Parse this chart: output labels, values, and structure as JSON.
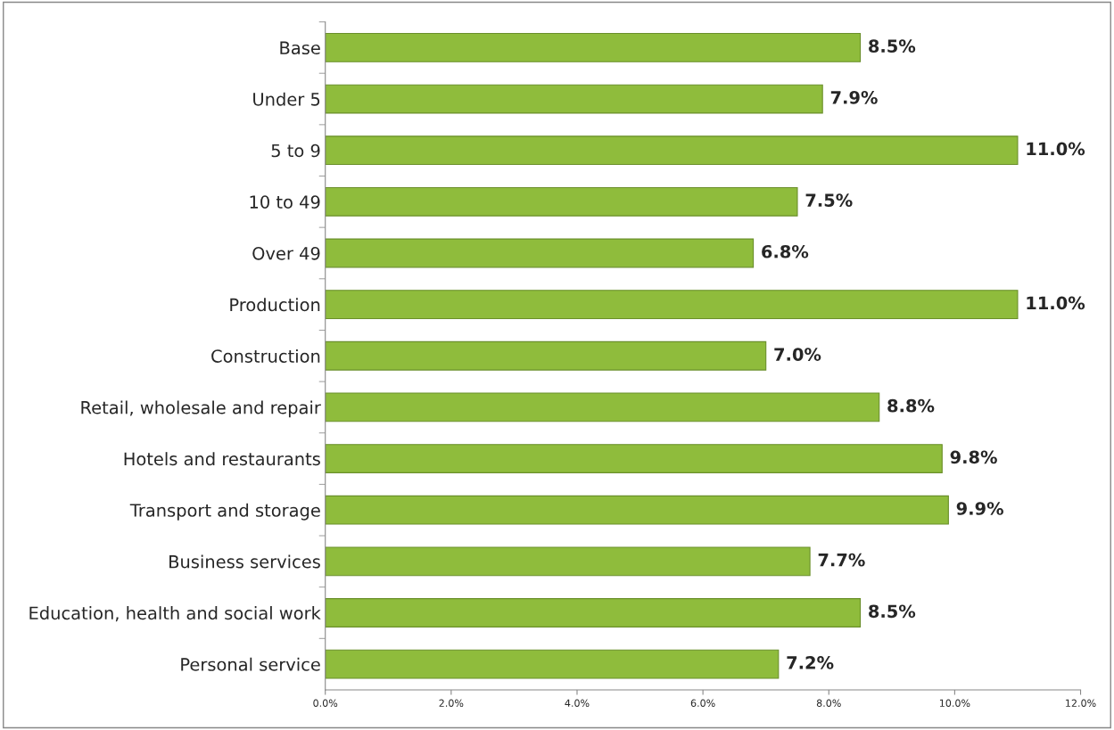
{
  "chart_data": {
    "type": "bar",
    "orientation": "horizontal",
    "categories": [
      "Base",
      "Under 5",
      "5 to 9",
      "10 to 49",
      "Over 49",
      "Production",
      "Construction",
      "Retail, wholesale and repair",
      "Hotels and restaurants",
      "Transport and storage",
      "Business services",
      "Education, health and social work",
      "Personal service"
    ],
    "values": [
      8.5,
      7.9,
      11.0,
      7.5,
      6.8,
      11.0,
      7.0,
      8.8,
      9.8,
      9.9,
      7.7,
      8.5,
      7.2
    ],
    "value_labels": [
      "8.5%",
      "7.9%",
      "11.0%",
      "7.5%",
      "6.8%",
      "11.0%",
      "7.0%",
      "8.8%",
      "9.8%",
      "9.9%",
      "7.7%",
      "8.5%",
      "7.2%"
    ],
    "color": "#8fbc3c",
    "xlim": [
      0,
      12
    ],
    "xticks": [
      {
        "value": 0,
        "label": "0.0%"
      },
      {
        "value": 2,
        "label": "2.0%"
      },
      {
        "value": 4,
        "label": "4.0%"
      },
      {
        "value": 6,
        "label": "6.0%"
      },
      {
        "value": 8,
        "label": "8.0%"
      },
      {
        "value": 10,
        "label": "10.0%"
      },
      {
        "value": 12,
        "label": "12.0%"
      }
    ],
    "grid": false,
    "legend": false
  }
}
